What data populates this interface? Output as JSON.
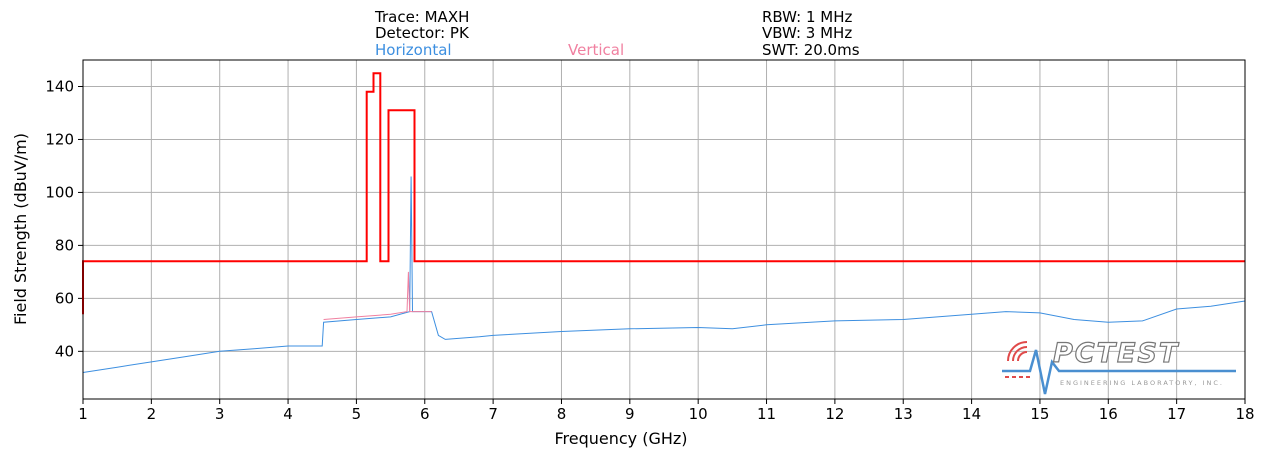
{
  "header": {
    "trace": "Trace: MAXH",
    "detector": "Detector: PK",
    "rbw": "RBW: 1 MHz",
    "vbw": "VBW: 3 MHz",
    "swt": "SWT: 20.0ms"
  },
  "logo": {
    "text": "PCTEST",
    "subtext": "ENGINEERING LABORATORY, INC."
  },
  "colors": {
    "limit": "#ff0000",
    "horizontal": "#3d8fe0",
    "vertical": "#f080a0",
    "grid": "#b0b0b0"
  },
  "chart_data": {
    "type": "line",
    "title": "",
    "xlabel": "Frequency (GHz)",
    "ylabel": "Field Strength (dBuV/m)",
    "xlim": [
      1,
      18
    ],
    "ylim": [
      22,
      150
    ],
    "xticks": [
      1,
      2,
      3,
      4,
      5,
      6,
      7,
      8,
      9,
      10,
      11,
      12,
      13,
      14,
      15,
      16,
      17,
      18
    ],
    "yticks": [
      40,
      60,
      80,
      100,
      120,
      140
    ],
    "grid": true,
    "legend_position": "top",
    "series": [
      {
        "name": "",
        "role": "limit",
        "color": "#ff0000",
        "x": [
          1,
          1,
          5.15,
          5.15,
          5.25,
          5.25,
          5.35,
          5.35,
          5.47,
          5.47,
          5.85,
          5.85,
          18
        ],
        "y": [
          54,
          74,
          74,
          138,
          138,
          145,
          145,
          74,
          74,
          131,
          131,
          74,
          74
        ]
      },
      {
        "name": "Horizontal",
        "color": "#3d8fe0",
        "x": [
          1,
          1.5,
          2,
          2.5,
          3,
          3.5,
          4,
          4.5,
          4.52,
          5,
          5.5,
          5.78,
          5.8,
          5.82,
          6.1,
          6.2,
          6.3,
          6.8,
          7,
          8,
          9,
          10,
          10.5,
          11,
          12,
          13,
          14,
          14.5,
          15,
          15.5,
          16,
          16.5,
          17,
          17.5,
          18
        ],
        "y": [
          32,
          34,
          36,
          38,
          40,
          41,
          42,
          42,
          51,
          52,
          53,
          55,
          106,
          55,
          55,
          46,
          44.5,
          45.5,
          46,
          47.5,
          48.5,
          49,
          48.5,
          50,
          51.5,
          52,
          54,
          55,
          54.5,
          52,
          51,
          51.5,
          56,
          57,
          59
        ]
      },
      {
        "name": "Vertical",
        "color": "#f080a0",
        "x": [
          4.52,
          5,
          5.5,
          5.74,
          5.76,
          5.78,
          6.1
        ],
        "y": [
          52,
          53,
          54,
          55,
          70,
          55,
          55
        ]
      }
    ]
  }
}
